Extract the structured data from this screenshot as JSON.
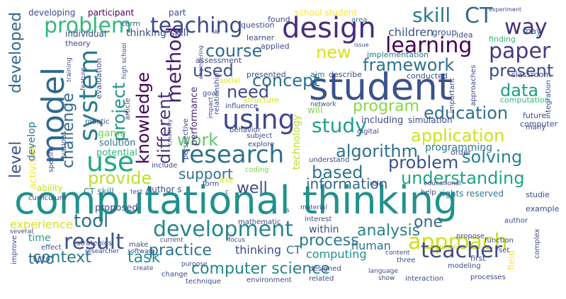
{
  "words": [
    {
      "text": "computational thinking",
      "color": "#21918c"
    },
    {
      "text": "student",
      "color": "#3b528b"
    },
    {
      "text": "model",
      "color": "#31688e"
    },
    {
      "text": "design",
      "color": "#472d7b"
    },
    {
      "text": "using",
      "color": "#3e4a89"
    },
    {
      "text": "research",
      "color": "#2c728e"
    },
    {
      "text": "system",
      "color": "#287c8e"
    },
    {
      "text": "use",
      "color": "#22a884"
    },
    {
      "text": "development",
      "color": "#25858e"
    },
    {
      "text": "problem",
      "color": "#35b779"
    },
    {
      "text": "teaching",
      "color": "#3e4989"
    },
    {
      "text": "approach",
      "color": "#cde11d"
    },
    {
      "text": "result",
      "color": "#3b528b"
    },
    {
      "text": "teacher",
      "color": "#3e4a89"
    },
    {
      "text": "learning",
      "color": "#440154"
    },
    {
      "text": "CT",
      "color": "#31688e"
    },
    {
      "text": "paper",
      "color": "#443983"
    },
    {
      "text": "skill",
      "color": "#2a788e"
    },
    {
      "text": "way",
      "color": "#472d7b"
    },
    {
      "text": "method",
      "color": "#481f70"
    },
    {
      "text": "study",
      "color": "#1fa187"
    },
    {
      "text": "knowledge",
      "color": "#440154"
    },
    {
      "text": "concept",
      "color": "#2c728e"
    },
    {
      "text": "course",
      "color": "#31688e"
    },
    {
      "text": "used",
      "color": "#3b528b"
    },
    {
      "text": "new",
      "color": "#d8e219"
    },
    {
      "text": "framework",
      "color": "#2c728e"
    },
    {
      "text": "application",
      "color": "#d0e11c"
    },
    {
      "text": "education",
      "color": "#2d708e"
    },
    {
      "text": "data",
      "color": "#1f9e89"
    },
    {
      "text": "present",
      "color": "#3e4989"
    },
    {
      "text": "program",
      "color": "#8bd646"
    },
    {
      "text": "algorithm",
      "color": "#2c728e"
    },
    {
      "text": "based",
      "color": "#2c728e"
    },
    {
      "text": "solving",
      "color": "#26828e"
    },
    {
      "text": "problem",
      "color": "#3b528b"
    },
    {
      "text": "understanding",
      "color": "#20a486"
    },
    {
      "text": "provide",
      "color": "#bddf26"
    },
    {
      "text": "support",
      "color": "#2c728e"
    },
    {
      "text": "information",
      "color": "#31688e"
    },
    {
      "text": "well",
      "color": "#3e4a89"
    },
    {
      "text": "work",
      "color": "#5ec962"
    },
    {
      "text": "need",
      "color": "#3e4989"
    },
    {
      "text": "project",
      "color": "#21918c"
    },
    {
      "text": "different",
      "color": "#46327e"
    },
    {
      "text": "challenge",
      "color": "#31688e"
    },
    {
      "text": "level",
      "color": "#3b528b"
    },
    {
      "text": "developed",
      "color": "#31688e"
    },
    {
      "text": "tool",
      "color": "#2d708e"
    },
    {
      "text": "two",
      "color": "#365c8d"
    },
    {
      "text": "context",
      "color": "#2a788e"
    },
    {
      "text": "task",
      "color": "#21918c"
    },
    {
      "text": "analysis",
      "color": "#26828e"
    },
    {
      "text": "process",
      "color": "#2a788e"
    },
    {
      "text": "computer science",
      "color": "#25858e"
    },
    {
      "text": "practice",
      "color": "#2c728e"
    },
    {
      "text": "one",
      "color": "#31688e"
    },
    {
      "text": "human",
      "color": "#2d708e"
    },
    {
      "text": "thinking",
      "color": "#3e4989"
    },
    {
      "text": "CT",
      "color": "#2c728e"
    },
    {
      "text": "computing",
      "color": "#21918c"
    },
    {
      "text": "children",
      "color": "#3b528b"
    },
    {
      "text": "programming",
      "color": "#2a788e"
    },
    {
      "text": "technology",
      "color": "#bddf26"
    },
    {
      "text": "experience",
      "color": "#d8e219"
    },
    {
      "text": "time",
      "color": "#1f9e89"
    },
    {
      "text": "within",
      "color": "#3e4989"
    },
    {
      "text": "activities",
      "color": "#fde725"
    },
    {
      "text": "develop",
      "color": "#2c728e"
    },
    {
      "text": "thinking skill",
      "color": "#3e4989"
    },
    {
      "text": "performance",
      "color": "#472d7b"
    },
    {
      "text": "game",
      "color": "#7ad151"
    },
    {
      "text": "solution",
      "color": "#2c728e"
    },
    {
      "text": "potential",
      "color": "#35b779"
    },
    {
      "text": "ability",
      "color": "#bddf26"
    },
    {
      "text": "CT skill",
      "color": "#2c728e"
    },
    {
      "text": "Author s",
      "color": "#3e4989"
    },
    {
      "text": "rights reserved",
      "color": "#2a788e"
    },
    {
      "text": "proposed",
      "color": "#3e4989"
    },
    {
      "text": "field",
      "color": "#fde725"
    },
    {
      "text": "will",
      "color": "#7ad151"
    },
    {
      "text": "including",
      "color": "#3e4989"
    },
    {
      "text": "simulation",
      "color": "#3e4989"
    },
    {
      "text": "developing",
      "color": "#3e4989"
    },
    {
      "text": "participant",
      "color": "#440154"
    },
    {
      "text": "part",
      "color": "#3e4989"
    },
    {
      "text": "school student",
      "color": "#fde725"
    },
    {
      "text": "group",
      "color": "#3b528b"
    },
    {
      "text": "may",
      "color": "#2c728e"
    },
    {
      "text": "term",
      "color": "#2c728e"
    },
    {
      "text": "question",
      "color": "#3e4989"
    },
    {
      "text": "found",
      "color": "#3e4989"
    },
    {
      "text": "area",
      "color": "#2c728e"
    },
    {
      "text": "individual",
      "color": "#3e4989"
    },
    {
      "text": "learner",
      "color": "#3e4989"
    },
    {
      "text": "applied",
      "color": "#3e4989"
    },
    {
      "text": "idea",
      "color": "#3e4989"
    },
    {
      "text": "finding",
      "color": "#35b779"
    },
    {
      "text": "theory",
      "color": "#3e4989"
    },
    {
      "text": "implementation",
      "color": "#2c728e"
    },
    {
      "text": "assessment",
      "color": "#3e4989"
    },
    {
      "text": "evaluation",
      "color": "#3e4989"
    },
    {
      "text": "aim",
      "color": "#2c728e"
    },
    {
      "text": "describe",
      "color": "#3e4989"
    },
    {
      "text": "conducted",
      "color": "#3e4989"
    },
    {
      "text": "classroom",
      "color": "#3e4989"
    },
    {
      "text": "integration",
      "color": "#3e4989"
    },
    {
      "text": "presented",
      "color": "#3e4989"
    },
    {
      "text": "computation",
      "color": "#35b779"
    },
    {
      "text": "computer",
      "color": "#3e4989"
    },
    {
      "text": "future",
      "color": "#3e4989"
    },
    {
      "text": "important",
      "color": "#3e4989"
    },
    {
      "text": "approaches",
      "color": "#3e4989"
    },
    {
      "text": "article",
      "color": "#3e4989"
    },
    {
      "text": "goal",
      "color": "#3e4989"
    },
    {
      "text": "structure",
      "color": "#d8e219"
    },
    {
      "text": "social",
      "color": "#d8e219"
    },
    {
      "text": "relationship",
      "color": "#3e4989"
    },
    {
      "text": "influence",
      "color": "#3e4989"
    },
    {
      "text": "impact",
      "color": "#3e4989"
    },
    {
      "text": "network",
      "color": "#3e4989"
    },
    {
      "text": "digital",
      "color": "#3e4989"
    },
    {
      "text": "order",
      "color": "#3e4989"
    },
    {
      "text": "robotic",
      "color": "#3e4989"
    },
    {
      "text": "various",
      "color": "#3e4989"
    },
    {
      "text": "specific",
      "color": "#3e4989"
    },
    {
      "text": "behavior",
      "color": "#3e4989"
    },
    {
      "text": "explore",
      "color": "#3e4989"
    },
    {
      "text": "subject",
      "color": "#3e4989"
    },
    {
      "text": "coding",
      "color": "#7ad151"
    },
    {
      "text": "understand",
      "color": "#3e4989"
    },
    {
      "text": "include",
      "color": "#3e4989"
    },
    {
      "text": "perspective",
      "color": "#3e4989"
    },
    {
      "text": "creativity",
      "color": "#3e4989"
    },
    {
      "text": "curriculum",
      "color": "#3e4989"
    },
    {
      "text": "form",
      "color": "#3e4989"
    },
    {
      "text": "IEEE",
      "color": "#d8e219"
    },
    {
      "text": "c",
      "color": "#3e4989"
    },
    {
      "text": "role",
      "color": "#3e4989"
    },
    {
      "text": "help",
      "color": "#3e4989"
    },
    {
      "text": "educational",
      "color": "#3e4989"
    },
    {
      "text": "studie",
      "color": "#3e4989"
    },
    {
      "text": "example",
      "color": "#3e4989"
    },
    {
      "text": "author",
      "color": "#3e4989"
    },
    {
      "text": "mathematic",
      "color": "#3e4989"
    },
    {
      "text": "interest",
      "color": "#3e4989"
    },
    {
      "text": "propose",
      "color": "#3e4989"
    },
    {
      "text": "material",
      "color": "#3e4989"
    },
    {
      "text": "s",
      "color": "#3e4989"
    },
    {
      "text": "function",
      "color": "#3e4989"
    },
    {
      "text": "set",
      "color": "#3e4989"
    },
    {
      "text": "complex",
      "color": "#3e4989"
    },
    {
      "text": "several",
      "color": "#3e4989"
    },
    {
      "text": "strategies",
      "color": "#3e4989"
    },
    {
      "text": "current",
      "color": "#3e4989"
    },
    {
      "text": "focus",
      "color": "#3e4989"
    },
    {
      "text": "effect",
      "color": "#3e4989"
    },
    {
      "text": "make",
      "color": "#3e4989"
    },
    {
      "text": "researcher",
      "color": "#3e4989"
    },
    {
      "text": "software",
      "color": "#3e4989"
    },
    {
      "text": "first",
      "color": "#3e4989"
    },
    {
      "text": "cognitive",
      "color": "#d8e219"
    },
    {
      "text": "modeling",
      "color": "#3e4989"
    },
    {
      "text": "improve",
      "color": "#3e4989"
    },
    {
      "text": "create",
      "color": "#3e4989"
    },
    {
      "text": "purpose",
      "color": "#3e4989"
    },
    {
      "text": "change",
      "color": "#3e4989"
    },
    {
      "text": "technique",
      "color": "#3e4989"
    },
    {
      "text": "environment",
      "color": "#3e4989"
    },
    {
      "text": "content",
      "color": "#3e4989"
    },
    {
      "text": "three",
      "color": "#3e4989"
    },
    {
      "text": "designed",
      "color": "#3e4989"
    },
    {
      "text": "related",
      "color": "#3e4989"
    },
    {
      "text": "language",
      "color": "#3e4989"
    },
    {
      "text": "show",
      "color": "#3e4989"
    },
    {
      "text": "interaction",
      "color": "#3e4989"
    },
    {
      "text": "processes",
      "color": "#3e4989"
    },
    {
      "text": "high school",
      "color": "#3e4989"
    },
    {
      "text": "training",
      "color": "#3e4989"
    },
    {
      "text": "feature",
      "color": "#3e4989"
    },
    {
      "text": "test",
      "color": "#3e4989"
    },
    {
      "text": "AI",
      "color": "#3e4989"
    },
    {
      "text": "engineering",
      "color": "#3e4989"
    },
    {
      "text": "issue",
      "color": "#3e4989"
    },
    {
      "text": "experiment",
      "color": "#3e4989"
    },
    {
      "text": "many",
      "color": "#3e4989"
    }
  ]
}
